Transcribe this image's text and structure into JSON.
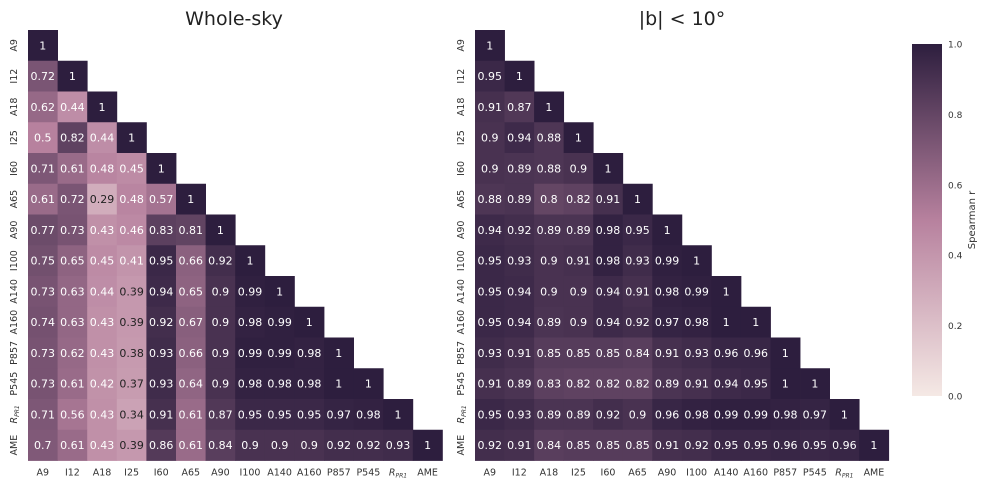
{
  "chart_data": [
    {
      "type": "heatmap",
      "title": "Whole-sky",
      "labels": [
        "A9",
        "I12",
        "A18",
        "I25",
        "I60",
        "A65",
        "A90",
        "I100",
        "A140",
        "A160",
        "P857",
        "P545",
        "R_PR1",
        "AME"
      ],
      "values": [
        [
          1
        ],
        [
          0.72,
          1
        ],
        [
          0.62,
          0.44,
          1
        ],
        [
          0.5,
          0.82,
          0.44,
          1
        ],
        [
          0.71,
          0.61,
          0.48,
          0.45,
          1
        ],
        [
          0.61,
          0.72,
          0.29,
          0.48,
          0.57,
          1
        ],
        [
          0.77,
          0.73,
          0.43,
          0.46,
          0.83,
          0.81,
          1
        ],
        [
          0.75,
          0.65,
          0.45,
          0.41,
          0.95,
          0.66,
          0.92,
          1
        ],
        [
          0.73,
          0.63,
          0.44,
          0.39,
          0.94,
          0.65,
          0.9,
          0.99,
          1
        ],
        [
          0.74,
          0.63,
          0.43,
          0.39,
          0.92,
          0.67,
          0.9,
          0.98,
          0.99,
          1
        ],
        [
          0.73,
          0.62,
          0.43,
          0.38,
          0.93,
          0.66,
          0.9,
          0.99,
          0.99,
          0.98,
          1
        ],
        [
          0.73,
          0.61,
          0.42,
          0.37,
          0.93,
          0.64,
          0.9,
          0.98,
          0.98,
          0.98,
          1,
          1
        ],
        [
          0.71,
          0.56,
          0.43,
          0.34,
          0.91,
          0.61,
          0.87,
          0.95,
          0.95,
          0.95,
          0.97,
          0.98,
          1
        ],
        [
          0.7,
          0.61,
          0.43,
          0.39,
          0.86,
          0.61,
          0.84,
          0.9,
          0.9,
          0.9,
          0.92,
          0.92,
          0.93,
          1
        ]
      ]
    },
    {
      "type": "heatmap",
      "title": "|b| < 10°",
      "labels": [
        "A9",
        "I12",
        "A18",
        "I25",
        "I60",
        "A65",
        "A90",
        "I100",
        "A140",
        "A160",
        "P857",
        "P545",
        "R_PR1",
        "AME"
      ],
      "values": [
        [
          1
        ],
        [
          0.95,
          1
        ],
        [
          0.91,
          0.87,
          1
        ],
        [
          0.9,
          0.94,
          0.88,
          1
        ],
        [
          0.9,
          0.89,
          0.88,
          0.9,
          1
        ],
        [
          0.88,
          0.89,
          0.8,
          0.82,
          0.91,
          1
        ],
        [
          0.94,
          0.92,
          0.89,
          0.89,
          0.98,
          0.95,
          1
        ],
        [
          0.95,
          0.93,
          0.9,
          0.91,
          0.98,
          0.93,
          0.99,
          1
        ],
        [
          0.95,
          0.94,
          0.9,
          0.9,
          0.94,
          0.91,
          0.98,
          0.99,
          1
        ],
        [
          0.95,
          0.94,
          0.89,
          0.9,
          0.94,
          0.92,
          0.97,
          0.98,
          1,
          1
        ],
        [
          0.93,
          0.91,
          0.85,
          0.85,
          0.85,
          0.84,
          0.91,
          0.93,
          0.96,
          0.96,
          1
        ],
        [
          0.91,
          0.89,
          0.83,
          0.82,
          0.82,
          0.82,
          0.89,
          0.91,
          0.94,
          0.95,
          1,
          1
        ],
        [
          0.95,
          0.93,
          0.89,
          0.89,
          0.92,
          0.9,
          0.96,
          0.98,
          0.99,
          0.99,
          0.98,
          0.97,
          1
        ],
        [
          0.92,
          0.91,
          0.84,
          0.85,
          0.85,
          0.85,
          0.91,
          0.92,
          0.95,
          0.95,
          0.96,
          0.95,
          0.96,
          1
        ]
      ]
    }
  ],
  "colorbar": {
    "label": "Spearman r",
    "ticks": [
      "0.0",
      "0.2",
      "0.4",
      "0.6",
      "0.8",
      "1.0"
    ],
    "range": [
      0,
      1
    ],
    "color_low": "#f5e9e5",
    "color_mid": "#b7819e",
    "color_high": "#2d1e3e"
  }
}
